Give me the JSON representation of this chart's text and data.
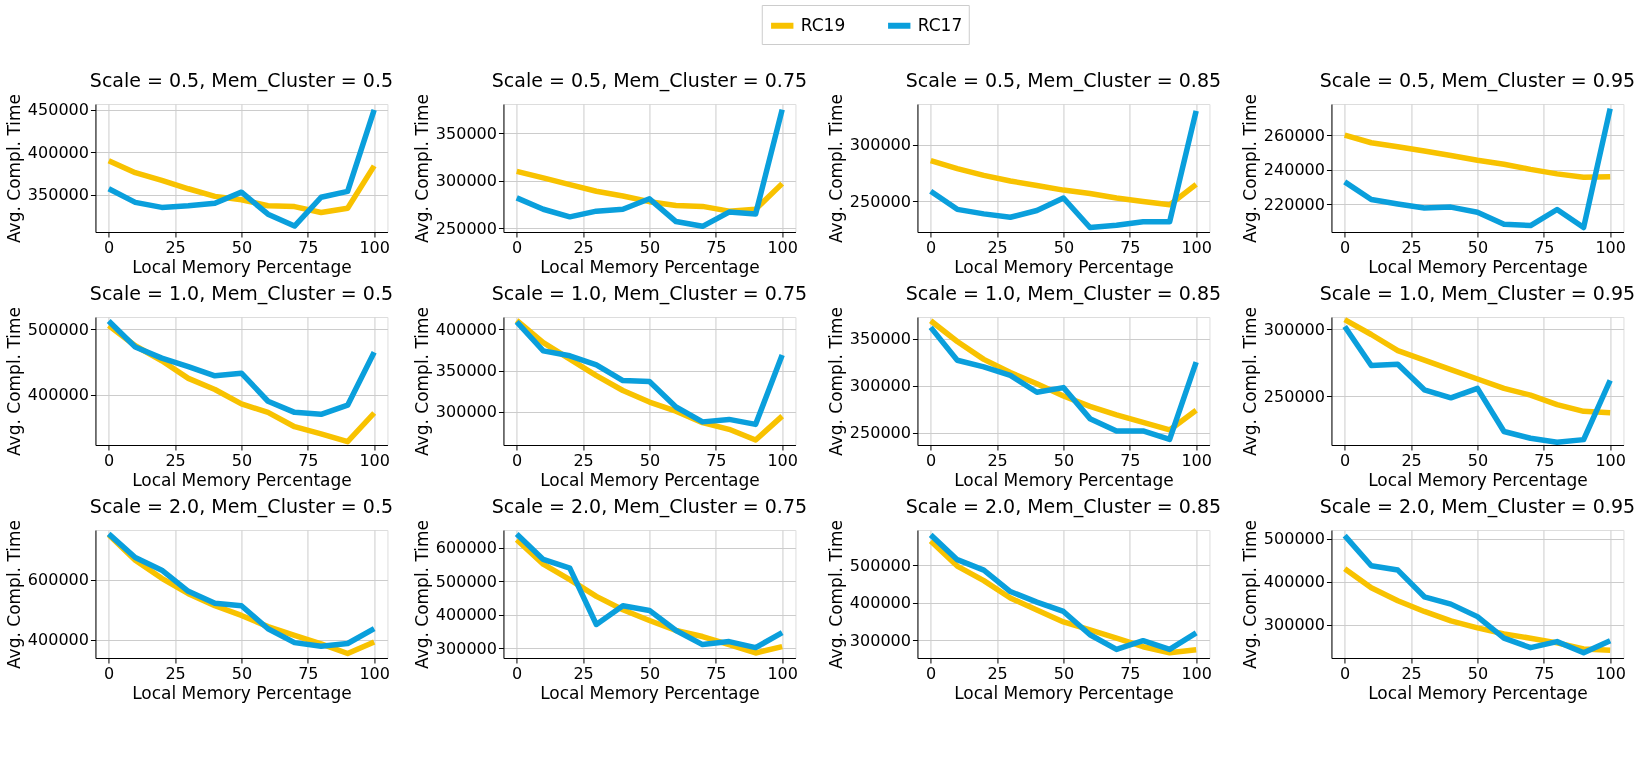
{
  "chart_data": [
    {
      "type": "line",
      "title": "Scale = 0.5, Mem_Cluster = 0.5",
      "xlabel": "Local Memory Percentage",
      "ylabel": "Avg. Compl. Time",
      "x": [
        0,
        10,
        20,
        30,
        40,
        50,
        60,
        70,
        80,
        90,
        100
      ],
      "xlim": [
        -5,
        105
      ],
      "xticks": [
        0,
        25,
        50,
        75,
        100
      ],
      "ylim": [
        306000,
        457000
      ],
      "yticks": [
        350000,
        400000,
        450000
      ],
      "grid": true,
      "legend": "top",
      "series": [
        {
          "name": "RC19",
          "color": "#f8c200",
          "values": [
            390000,
            376000,
            367000,
            357000,
            348000,
            344000,
            337000,
            336000,
            329000,
            334000,
            384000
          ]
        },
        {
          "name": "RC17",
          "color": "#0a9fdc",
          "values": [
            357000,
            341000,
            335000,
            337000,
            340000,
            353000,
            327000,
            313000,
            347000,
            354000,
            450000
          ]
        }
      ]
    },
    {
      "type": "line",
      "title": "Scale = 0.5, Mem_Cluster = 0.75",
      "xlabel": "Local Memory Percentage",
      "ylabel": "Avg. Compl. Time",
      "x": [
        0,
        10,
        20,
        30,
        40,
        50,
        60,
        70,
        80,
        90,
        100
      ],
      "xlim": [
        -5,
        105
      ],
      "xticks": [
        0,
        25,
        50,
        75,
        100
      ],
      "ylim": [
        246000,
        381000
      ],
      "yticks": [
        250000,
        300000,
        350000
      ],
      "grid": true,
      "series": [
        {
          "color": "#f8c200",
          "values": [
            310000,
            303000,
            296000,
            289000,
            284000,
            278000,
            274000,
            273000,
            268000,
            270000,
            297000
          ]
        },
        {
          "color": "#0a9fdc",
          "values": [
            282000,
            270000,
            262000,
            268000,
            270000,
            281000,
            257000,
            252000,
            267000,
            265000,
            375000
          ]
        }
      ]
    },
    {
      "type": "line",
      "title": "Scale = 0.5, Mem_Cluster = 0.85",
      "xlabel": "Local Memory Percentage",
      "ylabel": "Avg. Compl. Time",
      "x": [
        0,
        10,
        20,
        30,
        40,
        50,
        60,
        70,
        80,
        90,
        100
      ],
      "xlim": [
        -5,
        105
      ],
      "xticks": [
        0,
        25,
        50,
        75,
        100
      ],
      "ylim": [
        223000,
        336000
      ],
      "yticks": [
        250000,
        300000
      ],
      "grid": true,
      "series": [
        {
          "color": "#f8c200",
          "values": [
            286000,
            279000,
            273000,
            268000,
            264000,
            260000,
            257000,
            253000,
            250000,
            247000,
            265000
          ]
        },
        {
          "color": "#0a9fdc",
          "values": [
            259000,
            243000,
            239000,
            236000,
            242000,
            253000,
            227000,
            229000,
            232000,
            232000,
            330000
          ]
        }
      ]
    },
    {
      "type": "line",
      "title": "Scale = 0.5, Mem_Cluster = 0.95",
      "xlabel": "Local Memory Percentage",
      "ylabel": "Avg. Compl. Time",
      "x": [
        0,
        10,
        20,
        30,
        40,
        50,
        60,
        70,
        80,
        90,
        100
      ],
      "xlim": [
        -5,
        105
      ],
      "xticks": [
        0,
        25,
        50,
        75,
        100
      ],
      "ylim": [
        204000,
        278000
      ],
      "yticks": [
        220000,
        240000,
        260000
      ],
      "grid": true,
      "series": [
        {
          "color": "#f8c200",
          "values": [
            260000,
            255600,
            253300,
            250800,
            248200,
            245500,
            243200,
            240200,
            237600,
            235600,
            236000
          ]
        },
        {
          "color": "#0a9fdc",
          "values": [
            233000,
            222800,
            220200,
            217900,
            218400,
            215400,
            208500,
            207700,
            217000,
            206600,
            275300
          ]
        }
      ]
    },
    {
      "type": "line",
      "title": "Scale = 1.0, Mem_Cluster = 0.5",
      "xlabel": "Local Memory Percentage",
      "ylabel": "Avg. Compl. Time",
      "x": [
        0,
        10,
        20,
        30,
        40,
        50,
        60,
        70,
        80,
        90,
        100
      ],
      "xlim": [
        -5,
        105
      ],
      "xticks": [
        0,
        25,
        50,
        75,
        100
      ],
      "ylim": [
        323000,
        519000
      ],
      "yticks": [
        400000,
        500000
      ],
      "grid": true,
      "series": [
        {
          "color": "#f8c200",
          "values": [
            506000,
            475000,
            452000,
            425000,
            408000,
            386000,
            373000,
            351000,
            340000,
            328000,
            372000
          ]
        },
        {
          "color": "#0a9fdc",
          "values": [
            513000,
            473000,
            456000,
            443000,
            429000,
            433000,
            390000,
            373000,
            370000,
            384000,
            465000
          ]
        }
      ]
    },
    {
      "type": "line",
      "title": "Scale = 1.0, Mem_Cluster = 0.75",
      "xlabel": "Local Memory Percentage",
      "ylabel": "Avg. Compl. Time",
      "x": [
        0,
        10,
        20,
        30,
        40,
        50,
        60,
        70,
        80,
        90,
        100
      ],
      "xlim": [
        -5,
        105
      ],
      "xticks": [
        0,
        25,
        50,
        75,
        100
      ],
      "ylim": [
        260000,
        415000
      ],
      "yticks": [
        300000,
        350000,
        400000
      ],
      "grid": true,
      "series": [
        {
          "color": "#f8c200",
          "values": [
            411000,
            384000,
            364000,
            344000,
            326000,
            312000,
            301000,
            287000,
            279000,
            266000,
            295000
          ]
        },
        {
          "color": "#0a9fdc",
          "values": [
            409000,
            374000,
            368000,
            357000,
            338000,
            337000,
            306000,
            288000,
            291000,
            285000,
            369000
          ]
        }
      ]
    },
    {
      "type": "line",
      "title": "Scale = 1.0, Mem_Cluster = 0.85",
      "xlabel": "Local Memory Percentage",
      "ylabel": "Avg. Compl. Time",
      "x": [
        0,
        10,
        20,
        30,
        40,
        50,
        60,
        70,
        80,
        90,
        100
      ],
      "xlim": [
        -5,
        105
      ],
      "xticks": [
        0,
        25,
        50,
        75,
        100
      ],
      "ylim": [
        237000,
        373000
      ],
      "yticks": [
        250000,
        300000,
        350000
      ],
      "grid": true,
      "series": [
        {
          "color": "#f8c200",
          "values": [
            369000,
            347000,
            328000,
            314000,
            302000,
            289000,
            278000,
            269000,
            261000,
            253000,
            274000
          ]
        },
        {
          "color": "#0a9fdc",
          "values": [
            362000,
            327000,
            320000,
            311000,
            293000,
            298000,
            265000,
            252000,
            252000,
            243000,
            325000
          ]
        }
      ]
    },
    {
      "type": "line",
      "title": "Scale = 1.0, Mem_Cluster = 0.95",
      "xlabel": "Local Memory Percentage",
      "ylabel": "Avg. Compl. Time",
      "x": [
        0,
        10,
        20,
        30,
        40,
        50,
        60,
        70,
        80,
        90,
        100
      ],
      "xlim": [
        -5,
        105
      ],
      "xticks": [
        0,
        25,
        50,
        75,
        100
      ],
      "ylim": [
        214000,
        309000
      ],
      "yticks": [
        250000,
        300000
      ],
      "grid": true,
      "series": [
        {
          "color": "#f8c200",
          "values": [
            307000,
            296000,
            284000,
            277000,
            270000,
            263000,
            256000,
            251000,
            244000,
            239000,
            238000
          ]
        },
        {
          "color": "#0a9fdc",
          "values": [
            302000,
            273000,
            274000,
            255000,
            249000,
            256000,
            224000,
            219000,
            216000,
            218000,
            262000
          ]
        }
      ]
    },
    {
      "type": "line",
      "title": "Scale = 2.0, Mem_Cluster = 0.5",
      "xlabel": "Local Memory Percentage",
      "ylabel": "Avg. Compl. Time",
      "x": [
        0,
        10,
        20,
        30,
        40,
        50,
        60,
        70,
        80,
        90,
        100
      ],
      "xlim": [
        -5,
        105
      ],
      "xticks": [
        0,
        25,
        50,
        75,
        100
      ],
      "ylim": [
        340000,
        764000
      ],
      "yticks": [
        400000,
        600000
      ],
      "grid": true,
      "series": [
        {
          "color": "#f8c200",
          "values": [
            748000,
            664000,
            604000,
            553000,
            513000,
            481000,
            444000,
            415000,
            387000,
            355000,
            393000
          ]
        },
        {
          "color": "#0a9fdc",
          "values": [
            751000,
            673000,
            631000,
            561000,
            521000,
            513000,
            437000,
            391000,
            379000,
            388000,
            437000
          ]
        }
      ]
    },
    {
      "type": "line",
      "title": "Scale = 2.0, Mem_Cluster = 0.75",
      "xlabel": "Local Memory Percentage",
      "ylabel": "Avg. Compl. Time",
      "x": [
        0,
        10,
        20,
        30,
        40,
        50,
        60,
        70,
        80,
        90,
        100
      ],
      "xlim": [
        -5,
        105
      ],
      "xticks": [
        0,
        25,
        50,
        75,
        100
      ],
      "ylim": [
        271000,
        653000
      ],
      "yticks": [
        300000,
        400000,
        500000,
        600000
      ],
      "grid": true,
      "series": [
        {
          "color": "#f8c200",
          "values": [
            624000,
            551000,
            505000,
            455000,
            415000,
            383000,
            353000,
            335000,
            311000,
            286000,
            305000
          ]
        },
        {
          "color": "#0a9fdc",
          "values": [
            641000,
            565000,
            539000,
            371000,
            427000,
            413000,
            353000,
            311000,
            320000,
            302000,
            347000
          ]
        }
      ]
    },
    {
      "type": "line",
      "title": "Scale = 2.0, Mem_Cluster = 0.85",
      "xlabel": "Local Memory Percentage",
      "ylabel": "Avg. Compl. Time",
      "x": [
        0,
        10,
        20,
        30,
        40,
        50,
        60,
        70,
        80,
        90,
        100
      ],
      "xlim": [
        -5,
        105
      ],
      "xticks": [
        0,
        25,
        50,
        75,
        100
      ],
      "ylim": [
        253000,
        594000
      ],
      "yticks": [
        300000,
        400000,
        500000
      ],
      "grid": true,
      "series": [
        {
          "color": "#f8c200",
          "values": [
            565000,
            498000,
            459000,
            413000,
            381000,
            349000,
            328000,
            306000,
            283000,
            267000,
            275000
          ]
        },
        {
          "color": "#0a9fdc",
          "values": [
            581000,
            515000,
            487000,
            430000,
            402000,
            377000,
            315000,
            276000,
            299000,
            276000,
            320000
          ]
        }
      ]
    },
    {
      "type": "line",
      "title": "Scale = 2.0, Mem_Cluster = 0.95",
      "xlabel": "Local Memory Percentage",
      "ylabel": "Avg. Compl. Time",
      "x": [
        0,
        10,
        20,
        30,
        40,
        50,
        60,
        70,
        80,
        90,
        100
      ],
      "xlim": [
        -5,
        105
      ],
      "xticks": [
        0,
        25,
        50,
        75,
        100
      ],
      "ylim": [
        223000,
        520000
      ],
      "yticks": [
        300000,
        400000,
        500000
      ],
      "grid": true,
      "series": [
        {
          "color": "#f8c200",
          "values": [
            430000,
            386000,
            356000,
            331000,
            309000,
            293000,
            279000,
            269000,
            258000,
            244000,
            241000
          ]
        },
        {
          "color": "#0a9fdc",
          "values": [
            507000,
            437000,
            427000,
            365000,
            348000,
            319000,
            269000,
            247000,
            261000,
            235000,
            263000
          ]
        }
      ]
    }
  ]
}
